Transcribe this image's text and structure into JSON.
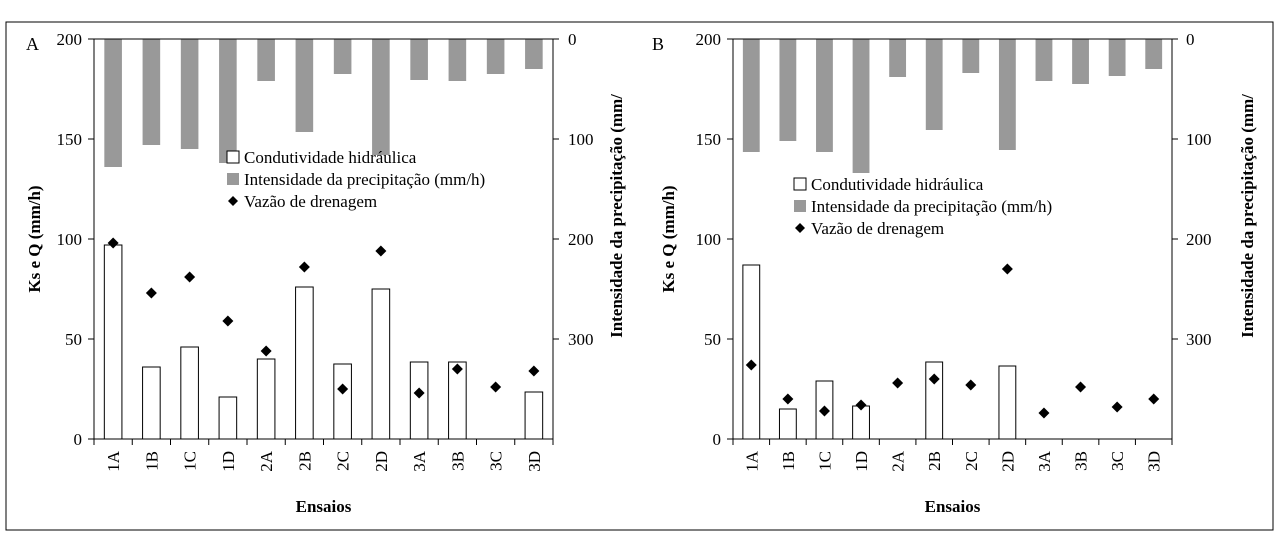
{
  "chart_data": [
    {
      "panel_label": "A",
      "type": "bar",
      "categories": [
        "1A",
        "1B",
        "1C",
        "1D",
        "2A",
        "2B",
        "2C",
        "2D",
        "3A",
        "3B",
        "3C",
        "3D"
      ],
      "xlabel": "Ensaios",
      "ylabel": "Ks e Q (mm/h)",
      "ylabel_right": "Intensidade da precipitação (mm/",
      "ylim": [
        0,
        200
      ],
      "yticks": [
        0,
        50,
        100,
        150,
        200
      ],
      "y2lim": [
        0,
        400
      ],
      "y2ticks": [
        0,
        100,
        200,
        300
      ],
      "y2_inverted": true,
      "legend": [
        "Condutividade hidráulica",
        "Intensidade da precipitação (mm/h)",
        "Vazão de drenagem"
      ],
      "series": [
        {
          "name": "Condutividade hidráulica",
          "kind": "bar",
          "axis": "left",
          "values": [
            97,
            36,
            46,
            21,
            40,
            76,
            37.5,
            75,
            38.5,
            38.5,
            null,
            23.5
          ]
        },
        {
          "name": "Intensidade da precipitação (mm/h)",
          "kind": "bar-down",
          "axis": "right",
          "values": [
            128,
            106,
            110,
            124,
            42,
            93,
            35,
            116,
            41,
            42,
            35,
            30
          ]
        },
        {
          "name": "Vazão de drenagem",
          "kind": "marker",
          "axis": "left",
          "values": [
            98,
            73,
            81,
            59,
            44,
            86,
            25,
            94,
            23,
            35,
            26,
            34
          ]
        }
      ]
    },
    {
      "panel_label": "B",
      "type": "bar",
      "categories": [
        "1A",
        "1B",
        "1C",
        "1D",
        "2A",
        "2B",
        "2C",
        "2D",
        "3A",
        "3B",
        "3C",
        "3D"
      ],
      "xlabel": "Ensaios",
      "ylabel": "Ks e Q (mm/h)",
      "ylabel_right": "Intensidade da precipitação (mm/",
      "ylim": [
        0,
        200
      ],
      "yticks": [
        0,
        50,
        100,
        150,
        200
      ],
      "y2lim": [
        0,
        400
      ],
      "y2ticks": [
        0,
        100,
        200,
        300
      ],
      "y2_inverted": true,
      "legend": [
        "Condutividade hidráulica",
        "Intensidade da precipitação (mm/h)",
        "Vazão de drenagem"
      ],
      "series": [
        {
          "name": "Condutividade hidráulica",
          "kind": "bar",
          "axis": "left",
          "values": [
            87,
            15,
            29,
            16.5,
            null,
            38.5,
            null,
            36.5,
            null,
            null,
            null,
            null
          ]
        },
        {
          "name": "Intensidade da precipitação (mm/h)",
          "kind": "bar-down",
          "axis": "right",
          "values": [
            113,
            102,
            113,
            134,
            38,
            91,
            34,
            111,
            42,
            45,
            37,
            30
          ]
        },
        {
          "name": "Vazão de drenagem",
          "kind": "marker",
          "axis": "left",
          "values": [
            37,
            20,
            14,
            17,
            28,
            30,
            27,
            85,
            13,
            26,
            16,
            20
          ]
        }
      ]
    }
  ]
}
